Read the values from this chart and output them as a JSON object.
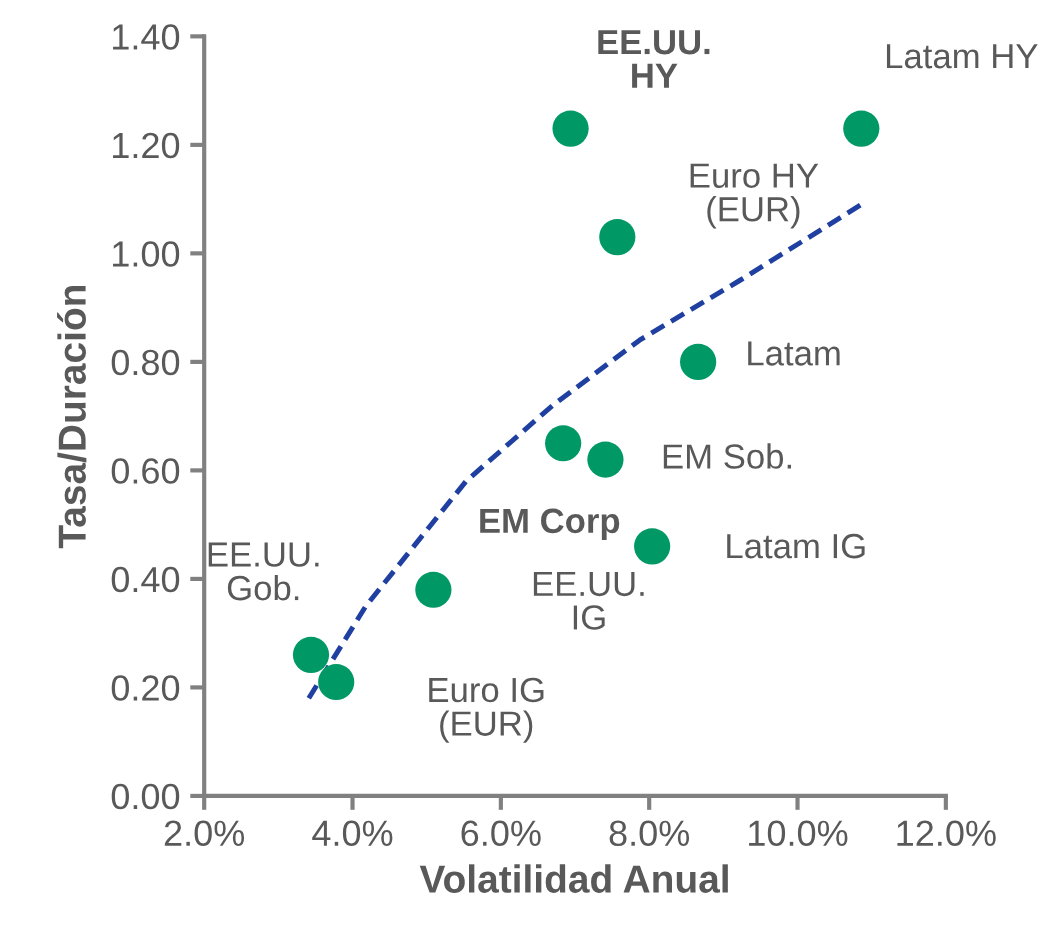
{
  "chart_data": {
    "type": "scatter",
    "xlabel": "Volatilidad Anual",
    "ylabel": "Tasa/Duración",
    "series": [
      {
        "color": "#009966",
        "marker": "circle",
        "x": [
          6.94,
          10.86,
          7.57,
          8.66,
          7.41,
          6.84,
          8.04,
          5.09,
          3.44,
          3.78
        ],
        "values": [
          1.23,
          1.23,
          1.03,
          0.8,
          0.62,
          0.65,
          0.46,
          0.38,
          0.26,
          0.21
        ]
      },
      {
        "type": "line",
        "color": "#1f40a0",
        "line_style": "dashed",
        "marker": "none",
        "x": [
          3.41,
          4.18,
          5.53,
          6.7,
          7.87,
          9.22,
          10.86
        ],
        "values": [
          0.18,
          0.35,
          0.58,
          0.72,
          0.84,
          0.95,
          1.09
        ]
      }
    ],
    "annotations": [
      {
        "text": "EE.UU.\nHY",
        "x": 6.94,
        "y": 1.23
      },
      {
        "text": "Latam HY",
        "x": 10.86,
        "y": 1.23
      },
      {
        "text": "Euro HY\n(EUR)",
        "x": 7.57,
        "y": 1.03
      },
      {
        "text": "Latam",
        "x": 8.66,
        "y": 0.8
      },
      {
        "text": "EM Sob.",
        "x": 7.41,
        "y": 0.62
      },
      {
        "text": "EM Corp",
        "x": 6.84,
        "y": 0.65
      },
      {
        "text": "Latam IG",
        "x": 8.04,
        "y": 0.46
      },
      {
        "text": "EE.UU.\nIG",
        "x": 5.09,
        "y": 0.38
      },
      {
        "text": "EE.UU.\nGob.",
        "x": 3.44,
        "y": 0.26
      },
      {
        "text": "Euro IG\n(EUR)",
        "x": 3.78,
        "y": 0.21
      }
    ],
    "xlim": [
      2,
      12
    ],
    "xticks": [
      {
        "value": 2,
        "label": "2.0%"
      },
      {
        "value": 4,
        "label": "4.0%"
      },
      {
        "value": 6,
        "label": "6.0%"
      },
      {
        "value": 8,
        "label": "8.0%"
      },
      {
        "value": 10,
        "label": "10.0%"
      },
      {
        "value": 12,
        "label": "12.0%"
      }
    ],
    "ylim": [
      0,
      1.4
    ],
    "yticks": [
      {
        "value": 0,
        "label": "0.00"
      },
      {
        "value": 0.2,
        "label": "0.20"
      },
      {
        "value": 0.4,
        "label": "0.40"
      },
      {
        "value": 0.6,
        "label": "0.60"
      },
      {
        "value": 0.8,
        "label": "0.80"
      },
      {
        "value": 1.0,
        "label": "1.00"
      },
      {
        "value": 1.2,
        "label": "1.20"
      },
      {
        "value": 1.4,
        "label": "1.40"
      }
    ],
    "grid": false,
    "legend": false
  }
}
